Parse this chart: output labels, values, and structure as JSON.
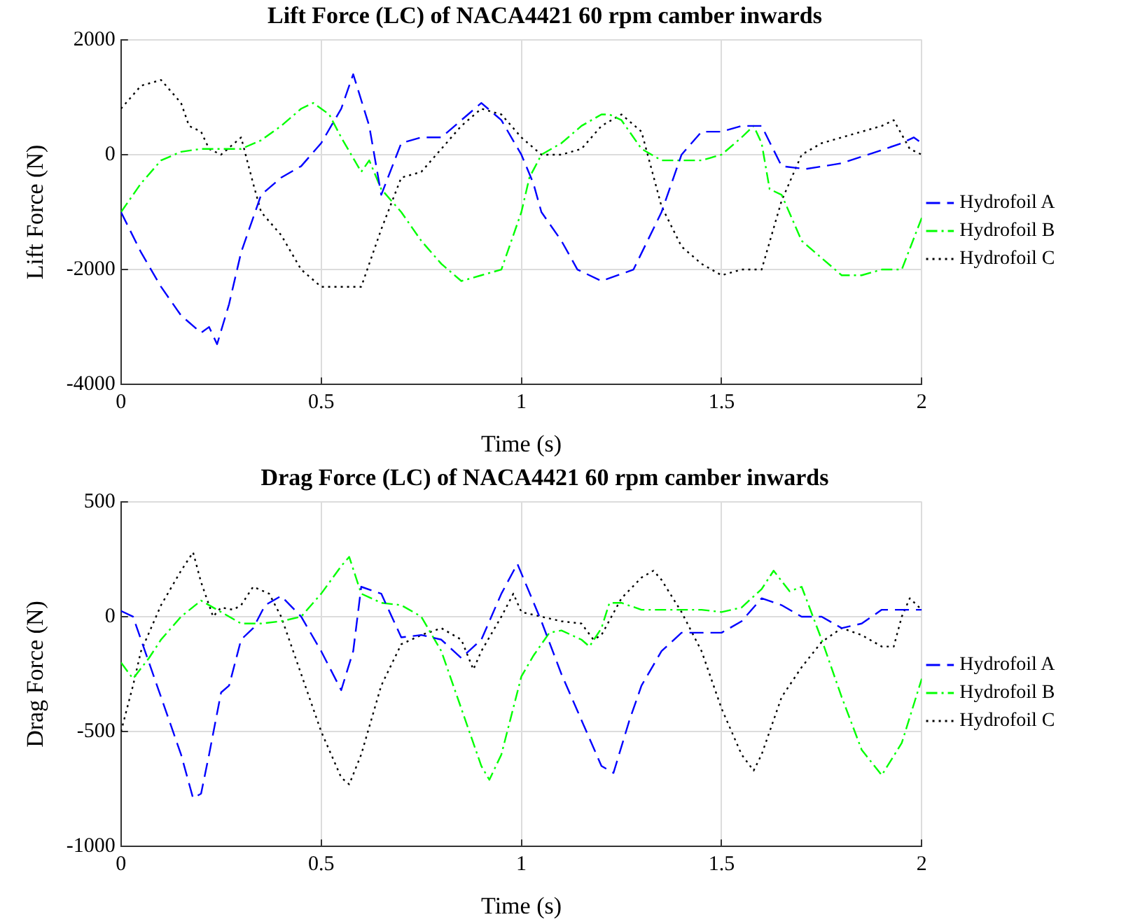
{
  "chart_data": [
    {
      "type": "line",
      "title": "Lift Force (LC) of NACA4421 60 rpm camber inwards",
      "xlabel": "Time (s)",
      "ylabel": "Lift Force (N)",
      "xlim": [
        0,
        2
      ],
      "xticks": [
        0,
        0.5,
        1,
        1.5,
        2
      ],
      "ylim": [
        -4000,
        2000
      ],
      "yticks": [
        -4000,
        -2000,
        0,
        2000
      ],
      "grid": true,
      "legend": "right",
      "marker": "none",
      "series": [
        {
          "name": "Hydrofoil A",
          "color": "#0000ff",
          "line_style": "dashed",
          "x": [
            0,
            0.05,
            0.1,
            0.15,
            0.2,
            0.22,
            0.24,
            0.27,
            0.3,
            0.35,
            0.4,
            0.45,
            0.5,
            0.55,
            0.58,
            0.62,
            0.65,
            0.7,
            0.75,
            0.8,
            0.85,
            0.9,
            0.95,
            1.0,
            1.03,
            1.05,
            1.1,
            1.14,
            1.2,
            1.28,
            1.35,
            1.4,
            1.45,
            1.5,
            1.55,
            1.6,
            1.65,
            1.71,
            1.8,
            1.9,
            1.95,
            1.98,
            2.0
          ],
          "values": [
            -1000,
            -1700,
            -2300,
            -2800,
            -3100,
            -3000,
            -3300,
            -2600,
            -1700,
            -700,
            -400,
            -200,
            200,
            800,
            1400,
            500,
            -700,
            200,
            300,
            300,
            600,
            900,
            600,
            0,
            -500,
            -1000,
            -1500,
            -2000,
            -2200,
            -2000,
            -1000,
            0,
            400,
            400,
            500,
            500,
            -200,
            -250,
            -150,
            80,
            200,
            300,
            200
          ]
        },
        {
          "name": "Hydrofoil B",
          "color": "#00ff00",
          "line_style": "dashdot",
          "x": [
            0,
            0.05,
            0.1,
            0.15,
            0.2,
            0.25,
            0.3,
            0.35,
            0.4,
            0.45,
            0.48,
            0.52,
            0.55,
            0.6,
            0.62,
            0.65,
            0.7,
            0.75,
            0.8,
            0.85,
            0.9,
            0.95,
            1.0,
            1.02,
            1.05,
            1.1,
            1.15,
            1.2,
            1.22,
            1.25,
            1.3,
            1.35,
            1.4,
            1.45,
            1.5,
            1.55,
            1.58,
            1.6,
            1.62,
            1.65,
            1.7,
            1.75,
            1.8,
            1.85,
            1.9,
            1.95,
            2.0
          ],
          "values": [
            -1000,
            -500,
            -100,
            50,
            100,
            100,
            100,
            250,
            500,
            800,
            900,
            700,
            300,
            -300,
            -100,
            -600,
            -1000,
            -1500,
            -1900,
            -2200,
            -2100,
            -2000,
            -1000,
            -400,
            0,
            200,
            500,
            700,
            700,
            600,
            100,
            -100,
            -100,
            -100,
            0,
            300,
            500,
            200,
            -600,
            -700,
            -1500,
            -1800,
            -2100,
            -2100,
            -2000,
            -2000,
            -1100
          ]
        },
        {
          "name": "Hydrofoil C",
          "color": "#000000",
          "line_style": "dotted",
          "x": [
            0,
            0.05,
            0.1,
            0.15,
            0.17,
            0.2,
            0.22,
            0.25,
            0.3,
            0.33,
            0.35,
            0.4,
            0.45,
            0.5,
            0.55,
            0.6,
            0.65,
            0.7,
            0.75,
            0.8,
            0.85,
            0.9,
            0.95,
            1.0,
            1.05,
            1.1,
            1.15,
            1.2,
            1.25,
            1.3,
            1.35,
            1.4,
            1.45,
            1.5,
            1.55,
            1.6,
            1.65,
            1.7,
            1.75,
            1.8,
            1.85,
            1.9,
            1.93,
            1.97,
            2.0
          ],
          "values": [
            800,
            1200,
            1300,
            900,
            500,
            400,
            100,
            0,
            300,
            -500,
            -1000,
            -1400,
            -2000,
            -2300,
            -2300,
            -2300,
            -1300,
            -400,
            -300,
            100,
            500,
            800,
            700,
            300,
            0,
            0,
            100,
            500,
            700,
            400,
            -900,
            -1600,
            -1900,
            -2100,
            -2000,
            -2000,
            -800,
            0,
            200,
            300,
            400,
            500,
            600,
            100,
            0
          ]
        }
      ]
    },
    {
      "type": "line",
      "title": "Drag Force (LC) of NACA4421 60 rpm camber inwards",
      "xlabel": "Time (s)",
      "ylabel": "Drag Force (N)",
      "xlim": [
        0,
        2
      ],
      "xticks": [
        0,
        0.5,
        1,
        1.5,
        2
      ],
      "ylim": [
        -1000,
        500
      ],
      "yticks": [
        -1000,
        -500,
        0,
        500
      ],
      "grid": true,
      "legend": "right",
      "marker": "none",
      "series": [
        {
          "name": "Hydrofoil A",
          "color": "#0000ff",
          "line_style": "dashed",
          "x": [
            0,
            0.03,
            0.07,
            0.1,
            0.15,
            0.18,
            0.2,
            0.22,
            0.25,
            0.27,
            0.3,
            0.33,
            0.36,
            0.4,
            0.45,
            0.5,
            0.55,
            0.58,
            0.6,
            0.65,
            0.7,
            0.75,
            0.8,
            0.85,
            0.9,
            0.95,
            0.99,
            1.05,
            1.1,
            1.15,
            1.2,
            1.23,
            1.27,
            1.3,
            1.35,
            1.4,
            1.45,
            1.5,
            1.55,
            1.6,
            1.65,
            1.7,
            1.75,
            1.8,
            1.85,
            1.9,
            1.95,
            2.0
          ],
          "values": [
            25,
            0,
            -200,
            -350,
            -600,
            -790,
            -770,
            -600,
            -330,
            -300,
            -100,
            -50,
            50,
            90,
            0,
            -150,
            -320,
            -150,
            130,
            100,
            -90,
            -80,
            -100,
            -180,
            -100,
            100,
            230,
            -20,
            -250,
            -450,
            -650,
            -680,
            -450,
            -300,
            -150,
            -70,
            -70,
            -70,
            -20,
            80,
            50,
            0,
            0,
            -50,
            -30,
            30,
            30,
            30
          ]
        },
        {
          "name": "Hydrofoil B",
          "color": "#00ff00",
          "line_style": "dashdot",
          "x": [
            0,
            0.03,
            0.07,
            0.1,
            0.15,
            0.2,
            0.25,
            0.3,
            0.35,
            0.4,
            0.45,
            0.5,
            0.55,
            0.57,
            0.6,
            0.65,
            0.7,
            0.75,
            0.8,
            0.85,
            0.9,
            0.92,
            0.95,
            1.0,
            1.03,
            1.07,
            1.1,
            1.15,
            1.17,
            1.2,
            1.22,
            1.25,
            1.3,
            1.4,
            1.45,
            1.5,
            1.55,
            1.6,
            1.63,
            1.67,
            1.7,
            1.75,
            1.8,
            1.85,
            1.9,
            1.95,
            2.0
          ],
          "values": [
            -200,
            -270,
            -180,
            -100,
            0,
            70,
            20,
            -30,
            -30,
            -20,
            0,
            100,
            220,
            260,
            100,
            60,
            50,
            0,
            -150,
            -400,
            -650,
            -710,
            -600,
            -260,
            -170,
            -70,
            -60,
            -100,
            -130,
            -50,
            60,
            60,
            30,
            30,
            30,
            20,
            40,
            120,
            200,
            110,
            130,
            -100,
            -350,
            -580,
            -690,
            -550,
            -270
          ]
        },
        {
          "name": "Hydrofoil C",
          "color": "#000000",
          "line_style": "dotted",
          "x": [
            0,
            0.03,
            0.05,
            0.1,
            0.15,
            0.18,
            0.2,
            0.23,
            0.25,
            0.28,
            0.3,
            0.33,
            0.37,
            0.4,
            0.45,
            0.5,
            0.55,
            0.57,
            0.6,
            0.65,
            0.7,
            0.75,
            0.8,
            0.85,
            0.88,
            0.9,
            0.95,
            0.98,
            1.0,
            1.05,
            1.1,
            1.15,
            1.18,
            1.2,
            1.25,
            1.3,
            1.33,
            1.35,
            1.4,
            1.45,
            1.5,
            1.55,
            1.58,
            1.6,
            1.65,
            1.7,
            1.75,
            1.8,
            1.85,
            1.9,
            1.93,
            1.95,
            1.97,
            2.0
          ],
          "values": [
            -500,
            -300,
            -150,
            50,
            200,
            280,
            150,
            0,
            40,
            30,
            50,
            130,
            100,
            0,
            -250,
            -500,
            -700,
            -730,
            -600,
            -300,
            -120,
            -80,
            -50,
            -100,
            -230,
            -150,
            0,
            100,
            20,
            0,
            -20,
            -30,
            -100,
            -80,
            80,
            170,
            200,
            160,
            20,
            -150,
            -400,
            -600,
            -670,
            -600,
            -350,
            -220,
            -110,
            -50,
            -80,
            -130,
            -130,
            0,
            80,
            30
          ]
        }
      ]
    }
  ]
}
